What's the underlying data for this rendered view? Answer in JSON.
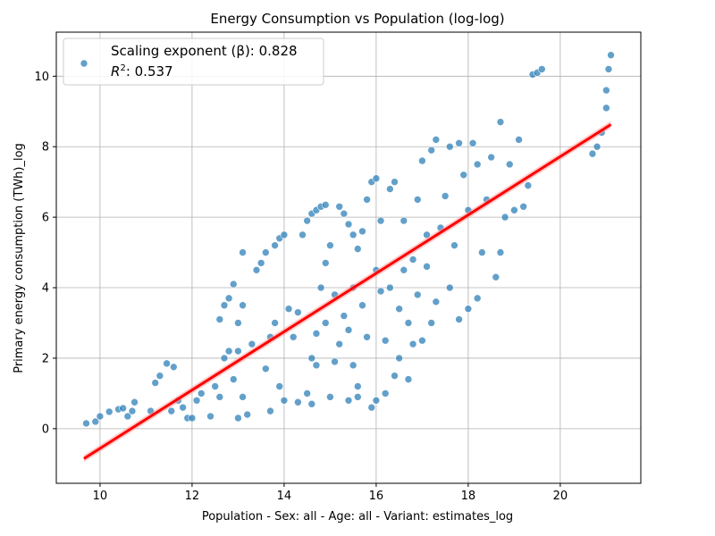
{
  "chart_data": {
    "type": "scatter",
    "title": "Energy Consumption vs Population (log-log)",
    "xlabel": "Population - Sex: all - Age: all - Variant: estimates_log",
    "ylabel": "Primary energy consumption (TWh)_log",
    "xlim": [
      9.05,
      21.75
    ],
    "ylim": [
      -1.55,
      11.25
    ],
    "xticks": [
      10,
      12,
      14,
      16,
      18,
      20
    ],
    "yticks": [
      0,
      2,
      4,
      6,
      8,
      10
    ],
    "grid": true,
    "legend": {
      "placement": "top-left",
      "line1": "Scaling exponent (β): 0.828",
      "line2_label": "R",
      "line2_sup": "2",
      "line2_value": ": 0.537"
    },
    "fit_line": {
      "x": [
        9.65,
        21.1
      ],
      "y": [
        -0.85,
        8.63
      ]
    },
    "series": [
      {
        "values": [
          [
            9.7,
            0.15
          ],
          [
            9.9,
            0.2
          ],
          [
            10.0,
            0.35
          ],
          [
            10.2,
            0.48
          ],
          [
            10.4,
            0.55
          ],
          [
            10.5,
            0.58
          ],
          [
            10.6,
            0.35
          ],
          [
            10.7,
            0.5
          ],
          [
            10.75,
            0.75
          ],
          [
            11.1,
            0.5
          ],
          [
            11.2,
            1.3
          ],
          [
            11.3,
            1.5
          ],
          [
            11.45,
            1.85
          ],
          [
            11.6,
            1.75
          ],
          [
            11.55,
            0.5
          ],
          [
            11.7,
            0.8
          ],
          [
            11.8,
            0.6
          ],
          [
            11.9,
            0.3
          ],
          [
            12.0,
            0.3
          ],
          [
            12.1,
            0.8
          ],
          [
            12.2,
            1.0
          ],
          [
            12.4,
            0.35
          ],
          [
            12.5,
            1.2
          ],
          [
            12.6,
            0.9
          ],
          [
            12.6,
            3.1
          ],
          [
            12.7,
            3.5
          ],
          [
            12.8,
            3.7
          ],
          [
            12.9,
            4.1
          ],
          [
            12.7,
            2.0
          ],
          [
            12.8,
            2.2
          ],
          [
            12.9,
            1.4
          ],
          [
            13.0,
            2.2
          ],
          [
            13.0,
            3.0
          ],
          [
            13.1,
            3.5
          ],
          [
            13.1,
            5.0
          ],
          [
            13.0,
            0.3
          ],
          [
            13.1,
            0.9
          ],
          [
            13.2,
            0.4
          ],
          [
            13.3,
            2.4
          ],
          [
            13.4,
            4.5
          ],
          [
            13.5,
            4.7
          ],
          [
            13.6,
            5.0
          ],
          [
            13.6,
            1.7
          ],
          [
            13.7,
            2.6
          ],
          [
            13.8,
            3.0
          ],
          [
            13.8,
            5.2
          ],
          [
            13.9,
            5.4
          ],
          [
            14.0,
            5.5
          ],
          [
            13.7,
            0.5
          ],
          [
            13.9,
            1.2
          ],
          [
            14.0,
            0.8
          ],
          [
            14.1,
            3.4
          ],
          [
            14.2,
            2.6
          ],
          [
            14.3,
            3.3
          ],
          [
            14.3,
            0.75
          ],
          [
            14.4,
            5.5
          ],
          [
            14.5,
            5.9
          ],
          [
            14.6,
            6.1
          ],
          [
            14.7,
            6.2
          ],
          [
            14.8,
            6.3
          ],
          [
            14.9,
            6.35
          ],
          [
            14.5,
            1.0
          ],
          [
            14.6,
            2.0
          ],
          [
            14.7,
            2.7
          ],
          [
            14.8,
            4.0
          ],
          [
            14.9,
            4.7
          ],
          [
            15.0,
            5.2
          ],
          [
            14.6,
            0.7
          ],
          [
            14.7,
            1.8
          ],
          [
            14.9,
            3.0
          ],
          [
            15.0,
            0.9
          ],
          [
            15.1,
            1.9
          ],
          [
            15.1,
            3.8
          ],
          [
            15.2,
            6.3
          ],
          [
            15.3,
            6.1
          ],
          [
            15.4,
            5.8
          ],
          [
            15.5,
            5.5
          ],
          [
            15.6,
            5.1
          ],
          [
            15.7,
            5.6
          ],
          [
            15.2,
            2.4
          ],
          [
            15.3,
            3.2
          ],
          [
            15.4,
            2.8
          ],
          [
            15.5,
            4.0
          ],
          [
            15.6,
            1.2
          ],
          [
            15.7,
            3.5
          ],
          [
            15.4,
            0.8
          ],
          [
            15.5,
            1.8
          ],
          [
            15.6,
            0.9
          ],
          [
            15.8,
            2.6
          ],
          [
            15.9,
            0.6
          ],
          [
            16.0,
            0.8
          ],
          [
            15.8,
            6.5
          ],
          [
            15.9,
            7.0
          ],
          [
            16.0,
            7.1
          ],
          [
            16.0,
            4.5
          ],
          [
            16.1,
            3.9
          ],
          [
            16.1,
            5.9
          ],
          [
            16.2,
            1.0
          ],
          [
            16.2,
            2.5
          ],
          [
            16.3,
            4.0
          ],
          [
            16.3,
            6.8
          ],
          [
            16.4,
            7.0
          ],
          [
            16.5,
            3.4
          ],
          [
            16.4,
            1.5
          ],
          [
            16.5,
            2.0
          ],
          [
            16.6,
            4.5
          ],
          [
            16.6,
            5.9
          ],
          [
            16.7,
            3.0
          ],
          [
            16.8,
            4.8
          ],
          [
            16.7,
            1.4
          ],
          [
            16.8,
            2.4
          ],
          [
            16.9,
            3.8
          ],
          [
            16.9,
            6.5
          ],
          [
            17.0,
            7.6
          ],
          [
            17.0,
            2.5
          ],
          [
            17.1,
            4.6
          ],
          [
            17.1,
            5.5
          ],
          [
            17.2,
            7.9
          ],
          [
            17.2,
            3.0
          ],
          [
            17.3,
            3.6
          ],
          [
            17.3,
            8.2
          ],
          [
            17.4,
            5.7
          ],
          [
            17.5,
            6.6
          ],
          [
            17.6,
            8.0
          ],
          [
            17.6,
            4.0
          ],
          [
            17.7,
            5.2
          ],
          [
            17.8,
            3.1
          ],
          [
            17.8,
            8.1
          ],
          [
            17.9,
            7.2
          ],
          [
            18.0,
            6.2
          ],
          [
            18.0,
            3.4
          ],
          [
            18.1,
            8.1
          ],
          [
            18.2,
            7.5
          ],
          [
            18.2,
            3.7
          ],
          [
            18.3,
            5.0
          ],
          [
            18.4,
            6.5
          ],
          [
            18.5,
            7.7
          ],
          [
            18.6,
            4.3
          ],
          [
            18.7,
            8.7
          ],
          [
            18.7,
            5.0
          ],
          [
            18.8,
            6.0
          ],
          [
            18.9,
            7.5
          ],
          [
            19.0,
            6.2
          ],
          [
            19.1,
            8.2
          ],
          [
            19.2,
            6.3
          ],
          [
            19.3,
            6.9
          ],
          [
            19.4,
            10.05
          ],
          [
            19.5,
            10.1
          ],
          [
            19.6,
            10.2
          ],
          [
            20.7,
            7.8
          ],
          [
            20.8,
            8.0
          ],
          [
            20.9,
            8.4
          ],
          [
            21.0,
            9.1
          ],
          [
            21.0,
            9.6
          ],
          [
            21.05,
            10.2
          ],
          [
            21.1,
            10.6
          ]
        ]
      }
    ]
  }
}
